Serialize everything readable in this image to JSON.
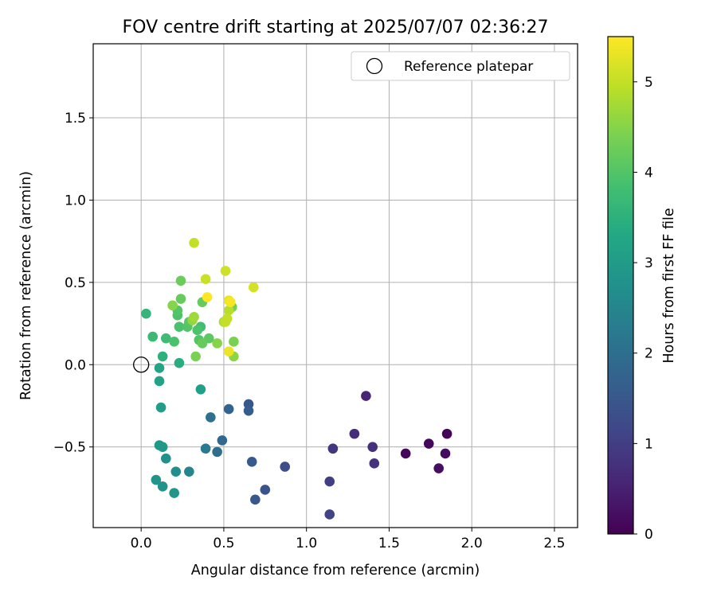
{
  "chart_data": {
    "type": "scatter",
    "title": "FOV centre drift starting at 2025/07/07 02:36:27",
    "xlabel": "Angular distance from reference (arcmin)",
    "ylabel": "Rotation from reference (arcmin)",
    "xlim": [
      -0.29,
      2.64
    ],
    "ylim": [
      -0.99,
      1.95
    ],
    "xticks": [
      0.0,
      0.5,
      1.0,
      1.5,
      2.0,
      2.5
    ],
    "xtick_labels": [
      "0.0",
      "0.5",
      "1.0",
      "1.5",
      "2.0",
      "2.5"
    ],
    "yticks": [
      -0.5,
      0.0,
      0.5,
      1.0,
      1.5
    ],
    "ytick_labels": [
      "−0.5",
      "0.0",
      "0.5",
      "1.0",
      "1.5"
    ],
    "grid": true,
    "colormap": "viridis",
    "colorbar": {
      "label": "Hours from first FF file",
      "range": [
        0,
        5.5
      ],
      "ticks": [
        0,
        1,
        2,
        3,
        4,
        5
      ],
      "tick_labels": [
        "0",
        "1",
        "2",
        "3",
        "4",
        "5"
      ]
    },
    "legend": {
      "position": "top-right",
      "entries": [
        "Reference platepar"
      ]
    },
    "reference_point": {
      "x": 0.0,
      "y": 0.0,
      "label": "Reference platepar"
    },
    "points": [
      {
        "x": 1.85,
        "y": -0.42,
        "c": 0.05
      },
      {
        "x": 1.74,
        "y": -0.48,
        "c": 0.1
      },
      {
        "x": 1.84,
        "y": -0.54,
        "c": 0.15
      },
      {
        "x": 1.6,
        "y": -0.54,
        "c": 0.1
      },
      {
        "x": 1.8,
        "y": -0.63,
        "c": 0.2
      },
      {
        "x": 1.36,
        "y": -0.19,
        "c": 0.55
      },
      {
        "x": 1.29,
        "y": -0.42,
        "c": 0.7
      },
      {
        "x": 1.4,
        "y": -0.5,
        "c": 0.75
      },
      {
        "x": 1.41,
        "y": -0.6,
        "c": 0.8
      },
      {
        "x": 1.16,
        "y": -0.51,
        "c": 0.85
      },
      {
        "x": 1.14,
        "y": -0.71,
        "c": 1.0
      },
      {
        "x": 1.14,
        "y": -0.91,
        "c": 1.1
      },
      {
        "x": 0.87,
        "y": -0.62,
        "c": 1.3
      },
      {
        "x": 0.75,
        "y": -0.76,
        "c": 1.4
      },
      {
        "x": 0.69,
        "y": -0.82,
        "c": 1.5
      },
      {
        "x": 0.67,
        "y": -0.59,
        "c": 1.55
      },
      {
        "x": 0.65,
        "y": -0.24,
        "c": 1.5
      },
      {
        "x": 0.65,
        "y": -0.28,
        "c": 1.6
      },
      {
        "x": 0.53,
        "y": -0.27,
        "c": 1.75
      },
      {
        "x": 0.49,
        "y": -0.46,
        "c": 1.85
      },
      {
        "x": 0.46,
        "y": -0.53,
        "c": 1.95
      },
      {
        "x": 0.42,
        "y": -0.32,
        "c": 2.05
      },
      {
        "x": 0.39,
        "y": -0.51,
        "c": 2.25
      },
      {
        "x": 0.29,
        "y": -0.65,
        "c": 2.5
      },
      {
        "x": 0.21,
        "y": -0.65,
        "c": 2.7
      },
      {
        "x": 0.15,
        "y": -0.57,
        "c": 2.75
      },
      {
        "x": 0.13,
        "y": -0.74,
        "c": 2.8
      },
      {
        "x": 0.09,
        "y": -0.7,
        "c": 2.85
      },
      {
        "x": 0.2,
        "y": -0.78,
        "c": 2.9
      },
      {
        "x": 0.11,
        "y": -0.49,
        "c": 2.9
      },
      {
        "x": 0.13,
        "y": -0.5,
        "c": 2.95
      },
      {
        "x": 0.12,
        "y": -0.26,
        "c": 3.05
      },
      {
        "x": 0.36,
        "y": -0.15,
        "c": 3.1
      },
      {
        "x": 0.11,
        "y": -0.1,
        "c": 3.15
      },
      {
        "x": 0.11,
        "y": -0.02,
        "c": 3.2
      },
      {
        "x": 0.23,
        "y": 0.01,
        "c": 3.4
      },
      {
        "x": 0.13,
        "y": 0.05,
        "c": 3.5
      },
      {
        "x": 0.03,
        "y": 0.31,
        "c": 3.6
      },
      {
        "x": 0.07,
        "y": 0.17,
        "c": 3.7
      },
      {
        "x": 0.15,
        "y": 0.16,
        "c": 3.75
      },
      {
        "x": 0.2,
        "y": 0.14,
        "c": 3.9
      },
      {
        "x": 0.23,
        "y": 0.23,
        "c": 3.9
      },
      {
        "x": 0.22,
        "y": 0.3,
        "c": 3.95
      },
      {
        "x": 0.22,
        "y": 0.33,
        "c": 4.0
      },
      {
        "x": 0.36,
        "y": 0.23,
        "c": 3.8
      },
      {
        "x": 0.34,
        "y": 0.21,
        "c": 3.95
      },
      {
        "x": 0.35,
        "y": 0.15,
        "c": 4.0
      },
      {
        "x": 0.28,
        "y": 0.23,
        "c": 4.0
      },
      {
        "x": 0.29,
        "y": 0.26,
        "c": 4.05
      },
      {
        "x": 0.41,
        "y": 0.16,
        "c": 4.1
      },
      {
        "x": 0.37,
        "y": 0.13,
        "c": 4.2
      },
      {
        "x": 0.24,
        "y": 0.4,
        "c": 4.2
      },
      {
        "x": 0.37,
        "y": 0.38,
        "c": 4.2
      },
      {
        "x": 0.24,
        "y": 0.51,
        "c": 4.25
      },
      {
        "x": 0.33,
        "y": 0.05,
        "c": 4.4
      },
      {
        "x": 0.19,
        "y": 0.36,
        "c": 4.5
      },
      {
        "x": 0.55,
        "y": 0.35,
        "c": 4.35
      },
      {
        "x": 0.56,
        "y": 0.14,
        "c": 4.4
      },
      {
        "x": 0.46,
        "y": 0.13,
        "c": 4.5
      },
      {
        "x": 0.56,
        "y": 0.05,
        "c": 4.55
      },
      {
        "x": 0.31,
        "y": 0.27,
        "c": 4.6
      },
      {
        "x": 0.32,
        "y": 0.29,
        "c": 4.7
      },
      {
        "x": 0.5,
        "y": 0.26,
        "c": 4.8
      },
      {
        "x": 0.53,
        "y": 0.33,
        "c": 4.9
      },
      {
        "x": 0.51,
        "y": 0.26,
        "c": 5.0
      },
      {
        "x": 0.52,
        "y": 0.28,
        "c": 5.0
      },
      {
        "x": 0.32,
        "y": 0.74,
        "c": 5.0
      },
      {
        "x": 0.39,
        "y": 0.52,
        "c": 5.05
      },
      {
        "x": 0.51,
        "y": 0.57,
        "c": 5.1
      },
      {
        "x": 0.68,
        "y": 0.47,
        "c": 5.15
      },
      {
        "x": 0.53,
        "y": 0.39,
        "c": 5.3
      },
      {
        "x": 0.53,
        "y": 0.08,
        "c": 5.35
      },
      {
        "x": 0.54,
        "y": 0.38,
        "c": 5.45
      },
      {
        "x": 0.4,
        "y": 0.41,
        "c": 5.5
      }
    ]
  }
}
